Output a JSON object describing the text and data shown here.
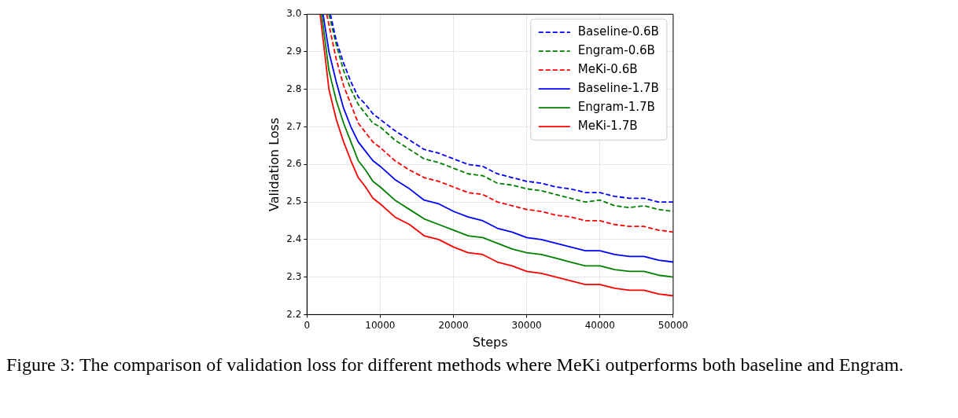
{
  "chart_data": {
    "type": "line",
    "xlabel": "Steps",
    "ylabel": "Validation Loss",
    "xlim": [
      0,
      50000
    ],
    "ylim": [
      2.2,
      3.0
    ],
    "xticks": [
      0,
      10000,
      20000,
      30000,
      40000,
      50000
    ],
    "yticks": [
      2.2,
      2.3,
      2.4,
      2.5,
      2.6,
      2.7,
      2.8,
      2.9,
      {
        "value": 3,
        "label": "3.0"
      }
    ],
    "grid": true,
    "legend": "top right",
    "annotations": [
      "Figure 3: The comparison of validation loss for different methods where MeKi outperforms both baseline and Engram."
    ],
    "series": [
      {
        "name": "Baseline-0.6B",
        "color": "#0000ff",
        "line_style": "dashed",
        "x": [
          3200,
          4000,
          5000,
          6000,
          7000,
          8000,
          9000,
          10000,
          12000,
          14000,
          16000,
          18000,
          20000,
          22000,
          24000,
          26000,
          28000,
          30000,
          32000,
          34000,
          36000,
          38000,
          40000,
          42000,
          44000,
          46000,
          48000,
          50000
        ],
        "values": [
          3.0,
          2.93,
          2.87,
          2.82,
          2.78,
          2.76,
          2.735,
          2.72,
          2.69,
          2.665,
          2.64,
          2.63,
          2.615,
          2.6,
          2.595,
          2.575,
          2.565,
          2.555,
          2.55,
          2.54,
          2.535,
          2.525,
          2.525,
          2.515,
          2.51,
          2.51,
          2.5,
          2.5
        ]
      },
      {
        "name": "Engram-0.6B",
        "color": "#008000",
        "line_style": "dashed",
        "x": [
          3000,
          4000,
          5000,
          6000,
          7000,
          8000,
          9000,
          10000,
          12000,
          14000,
          16000,
          18000,
          20000,
          22000,
          24000,
          26000,
          28000,
          30000,
          32000,
          34000,
          36000,
          38000,
          40000,
          42000,
          44000,
          46000,
          48000,
          50000
        ],
        "values": [
          3.0,
          2.92,
          2.85,
          2.8,
          2.76,
          2.735,
          2.71,
          2.7,
          2.665,
          2.64,
          2.615,
          2.605,
          2.59,
          2.575,
          2.57,
          2.55,
          2.545,
          2.535,
          2.53,
          2.52,
          2.51,
          2.5,
          2.505,
          2.49,
          2.485,
          2.49,
          2.48,
          2.475
        ]
      },
      {
        "name": "MeKi-0.6B",
        "color": "#ff0000",
        "line_style": "dashed",
        "x": [
          2700,
          4000,
          5000,
          6000,
          7000,
          8000,
          9000,
          10000,
          12000,
          14000,
          16000,
          18000,
          20000,
          22000,
          24000,
          26000,
          28000,
          30000,
          32000,
          34000,
          36000,
          38000,
          40000,
          42000,
          44000,
          46000,
          48000,
          50000
        ],
        "values": [
          3.0,
          2.88,
          2.81,
          2.76,
          2.71,
          2.685,
          2.66,
          2.645,
          2.61,
          2.585,
          2.565,
          2.555,
          2.54,
          2.525,
          2.52,
          2.5,
          2.49,
          2.48,
          2.475,
          2.465,
          2.46,
          2.45,
          2.45,
          2.44,
          2.435,
          2.435,
          2.425,
          2.42
        ]
      },
      {
        "name": "Baseline-1.7B",
        "color": "#0000ff",
        "line_style": "solid",
        "x": [
          2200,
          3000,
          4000,
          5000,
          6000,
          7000,
          8000,
          9000,
          10000,
          12000,
          14000,
          16000,
          18000,
          20000,
          22000,
          24000,
          26000,
          28000,
          30000,
          32000,
          34000,
          36000,
          38000,
          40000,
          42000,
          44000,
          46000,
          48000,
          50000
        ],
        "values": [
          3.0,
          2.9,
          2.82,
          2.75,
          2.7,
          2.66,
          2.635,
          2.61,
          2.595,
          2.56,
          2.535,
          2.505,
          2.495,
          2.475,
          2.46,
          2.45,
          2.43,
          2.42,
          2.405,
          2.4,
          2.39,
          2.38,
          2.37,
          2.37,
          2.36,
          2.355,
          2.355,
          2.345,
          2.34
        ]
      },
      {
        "name": "Engram-1.7B",
        "color": "#008000",
        "line_style": "solid",
        "x": [
          2000,
          3000,
          4000,
          5000,
          6000,
          7000,
          8000,
          9000,
          10000,
          12000,
          14000,
          16000,
          18000,
          20000,
          22000,
          24000,
          26000,
          28000,
          30000,
          32000,
          34000,
          36000,
          38000,
          40000,
          42000,
          44000,
          46000,
          48000,
          50000
        ],
        "values": [
          3.0,
          2.85,
          2.77,
          2.71,
          2.66,
          2.61,
          2.585,
          2.555,
          2.54,
          2.505,
          2.48,
          2.455,
          2.44,
          2.425,
          2.41,
          2.405,
          2.39,
          2.375,
          2.365,
          2.36,
          2.35,
          2.34,
          2.33,
          2.33,
          2.32,
          2.315,
          2.315,
          2.305,
          2.3
        ]
      },
      {
        "name": "MeKi-1.7B",
        "color": "#ff0000",
        "line_style": "solid",
        "x": [
          1800,
          3000,
          4000,
          5000,
          6000,
          7000,
          8000,
          9000,
          10000,
          12000,
          14000,
          16000,
          18000,
          20000,
          22000,
          24000,
          26000,
          28000,
          30000,
          32000,
          34000,
          36000,
          38000,
          40000,
          42000,
          44000,
          46000,
          48000,
          50000
        ],
        "values": [
          3.0,
          2.8,
          2.72,
          2.66,
          2.61,
          2.565,
          2.54,
          2.51,
          2.495,
          2.46,
          2.44,
          2.41,
          2.4,
          2.38,
          2.365,
          2.36,
          2.34,
          2.33,
          2.315,
          2.31,
          2.3,
          2.29,
          2.28,
          2.28,
          2.27,
          2.265,
          2.265,
          2.255,
          2.25
        ]
      }
    ]
  }
}
